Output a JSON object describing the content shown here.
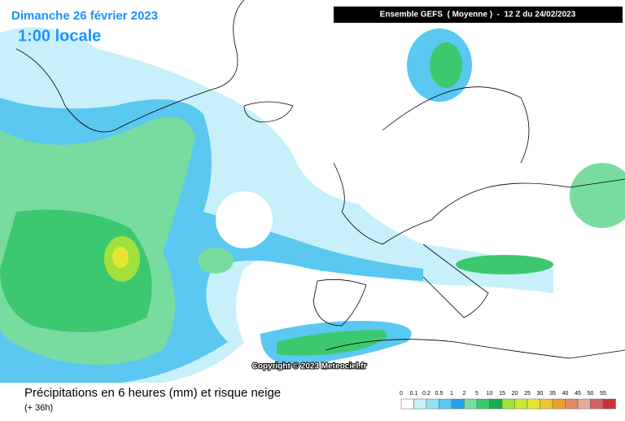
{
  "map": {
    "title": "Dimanche 26 février 2023",
    "time": "1:00 locale",
    "model": "Ensemble GEFS  ( Moyenne )  -  12 Z du 24/02/2023",
    "copyright": "Copyright © 2023 Meteociel.fr",
    "caption": "Précipitations en 6 heures (mm) et risque neige",
    "lead": "(+ 36h)",
    "legend": [
      {
        "label": 0,
        "color": "#ffffff"
      },
      {
        "label": 0.1,
        "color": "#c8f0fa"
      },
      {
        "label": 0.2,
        "color": "#96e1f5"
      },
      {
        "label": 0.5,
        "color": "#5ac8f0"
      },
      {
        "label": 1,
        "color": "#28a0eb"
      },
      {
        "label": 2,
        "color": "#78dca0"
      },
      {
        "label": 5,
        "color": "#3cc86e"
      },
      {
        "label": 10,
        "color": "#1eaa50"
      },
      {
        "label": 15,
        "color": "#a0e13c"
      },
      {
        "label": 20,
        "color": "#c8eb32"
      },
      {
        "label": 25,
        "color": "#e6e632"
      },
      {
        "label": 30,
        "color": "#ebc832"
      },
      {
        "label": 35,
        "color": "#eba032"
      },
      {
        "label": 40,
        "color": "#dc8c64"
      },
      {
        "label": 45,
        "color": "#e6aaa0"
      },
      {
        "label": 50,
        "color": "#d26464"
      },
      {
        "label": 55,
        "color": "#c83232"
      }
    ]
  }
}
